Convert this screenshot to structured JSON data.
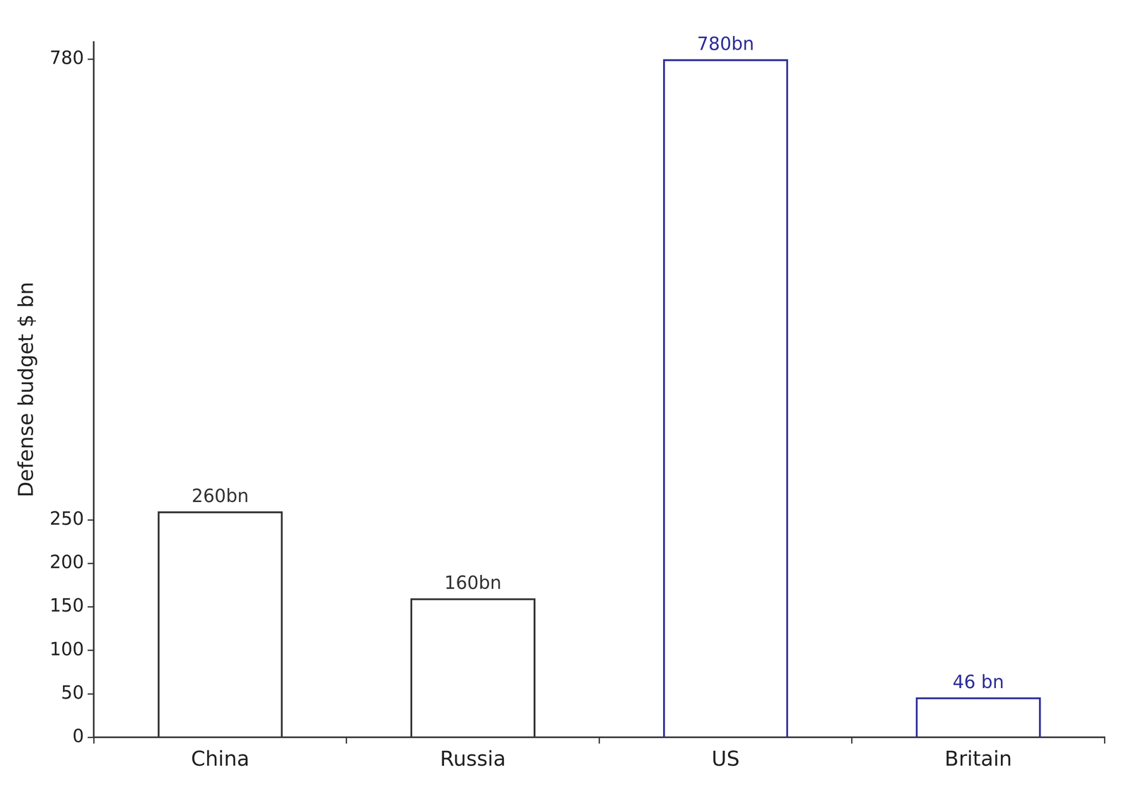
{
  "chart_data": {
    "type": "bar",
    "ylabel": "Defense budget $ bn",
    "categories": [
      "China",
      "Russia",
      "US",
      "Britain"
    ],
    "values": [
      260,
      160,
      780,
      46
    ],
    "value_labels": [
      "260bn",
      "160bn",
      "780bn",
      "46 bn"
    ],
    "colors": [
      "#333333",
      "#333333",
      "#2e2e9a",
      "#2e2e9a"
    ],
    "ylim": [
      0,
      800
    ],
    "yticks": [
      0,
      50,
      100,
      150,
      200,
      250,
      780
    ],
    "grid": false,
    "data_labels": true
  }
}
